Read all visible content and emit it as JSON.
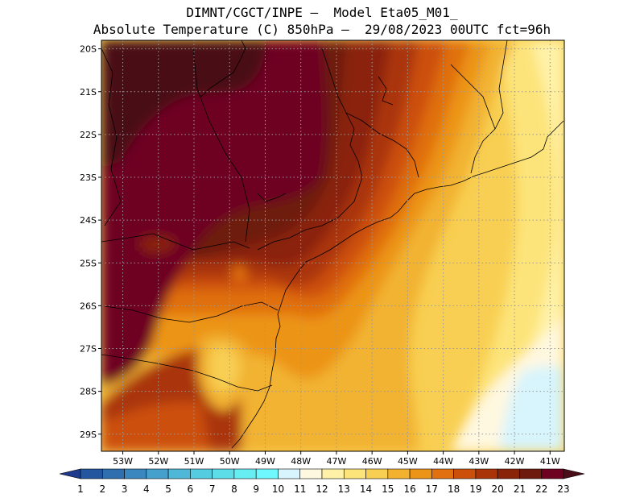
{
  "title_line1": "DIMNT/CGCT/INPE —  Model Eta05_M01_",
  "title_line2": "Absolute Temperature (C) 850hPa —  29/08/2023 00UTC fct=96h",
  "map": {
    "lon_range": [
      -53.6,
      -40.6
    ],
    "lat_range": [
      -29.4,
      -19.8
    ],
    "lon_ticks": [
      "53W",
      "52W",
      "51W",
      "50W",
      "49W",
      "48W",
      "47W",
      "46W",
      "45W",
      "44W",
      "43W",
      "42W",
      "41W"
    ],
    "lat_ticks": [
      "20S",
      "21S",
      "22S",
      "23S",
      "24S",
      "25S",
      "26S",
      "27S",
      "28S",
      "29S"
    ]
  },
  "colorbar": {
    "labels": [
      "1",
      "2",
      "3",
      "4",
      "5",
      "6",
      "7",
      "8",
      "9",
      "10",
      "11",
      "12",
      "13",
      "14",
      "15",
      "16",
      "17",
      "18",
      "19",
      "20",
      "21",
      "22",
      "23"
    ],
    "colors": [
      "#1e3a8c",
      "#2456a0",
      "#2f6fb0",
      "#3a86bf",
      "#45a0cc",
      "#4fb8d8",
      "#55cce0",
      "#5ddde8",
      "#66eef2",
      "#6ff8ff",
      "#d8f4fc",
      "#fff8e0",
      "#fff2a8",
      "#fde47a",
      "#f8cf52",
      "#f2b230",
      "#ec9418",
      "#e07010",
      "#cc500a",
      "#aa340a",
      "#8a2408",
      "#6e1a0c",
      "#6e0022",
      "#4a0e18"
    ]
  }
}
